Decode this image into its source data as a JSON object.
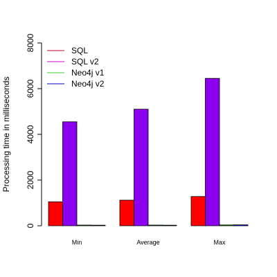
{
  "chart_data": {
    "type": "bar",
    "title": "",
    "xlabel": "",
    "ylabel": "Processing time in milliseconds",
    "categories": [
      "Min",
      "Average",
      "Max"
    ],
    "series": [
      {
        "name": "SQL",
        "color": "#ff0000",
        "values": [
          1050,
          1120,
          1280
        ]
      },
      {
        "name": "SQL v2",
        "color": "#8b00ee",
        "values": [
          4550,
          5100,
          6450
        ]
      },
      {
        "name": "Neo4j v1",
        "color": "#00c000",
        "values": [
          30,
          30,
          35
        ]
      },
      {
        "name": "Neo4j v2",
        "color": "#0000ff",
        "values": [
          25,
          25,
          40
        ]
      }
    ],
    "legend_colors": [
      "#cc0033",
      "#cc00cc",
      "#33cc33",
      "#0000cc"
    ],
    "ylim": [
      0,
      8000
    ],
    "yticks": [
      0,
      2000,
      4000,
      6000,
      8000
    ],
    "grid": false,
    "legend_position": "top-left"
  }
}
